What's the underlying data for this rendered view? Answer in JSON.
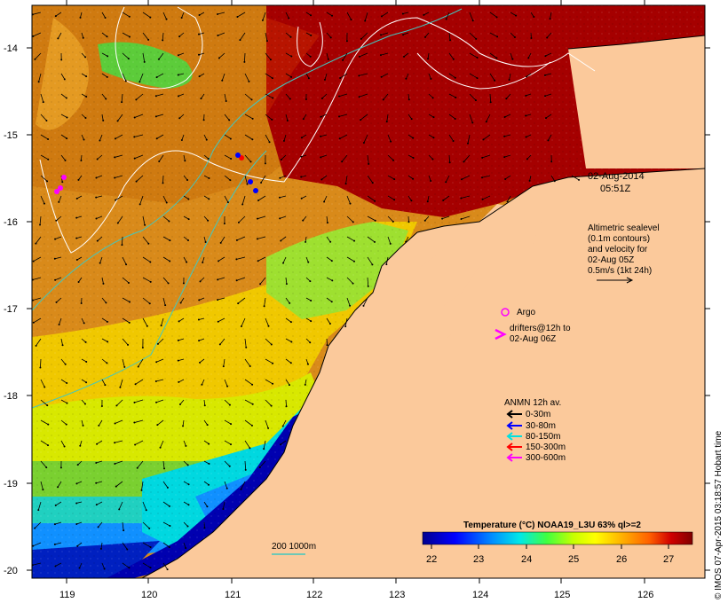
{
  "map": {
    "lat_ticks": [
      "-14",
      "-15",
      "-16",
      "-17",
      "-18",
      "-19",
      "-20"
    ],
    "lon_ticks": [
      "119",
      "120",
      "121",
      "122",
      "123",
      "124",
      "125",
      "126"
    ]
  },
  "annotations": {
    "date": "02-Aug-2014",
    "time": "05:51Z",
    "sealevel_line1": "Altimetric sealevel",
    "sealevel_line2": "(0.1m contours)",
    "sealevel_line3": "and velocity for",
    "sealevel_line4": "02-Aug 05Z",
    "sealevel_line5": "0.5m/s (1kt 24h)",
    "argo_label": "Argo",
    "drifters_line1": "drifters@12h to",
    "drifters_line2": "02-Aug 06Z",
    "anmn_title": "ANMN 12h av.",
    "anmn_legend": [
      {
        "label": "0-30m",
        "color": "#000000"
      },
      {
        "label": "30-80m",
        "color": "#0000ff"
      },
      {
        "label": "80-150m",
        "color": "#00e0e0"
      },
      {
        "label": "150-300m",
        "color": "#ff0000"
      },
      {
        "label": "300-600m",
        "color": "#ff00ff"
      }
    ],
    "depth_contour_label": "200  1000m"
  },
  "colorbar": {
    "title": "Temperature (°C) NOAA19_L3U 63% ql>=2",
    "ticks": [
      "22",
      "23",
      "24",
      "25",
      "26",
      "27"
    ]
  },
  "credit": "© IMOS 07-Apr-2015 03:18:57 Hobart time",
  "colors": {
    "land": "#fbc99b",
    "warm": "#a50000",
    "cold": "#000090"
  }
}
